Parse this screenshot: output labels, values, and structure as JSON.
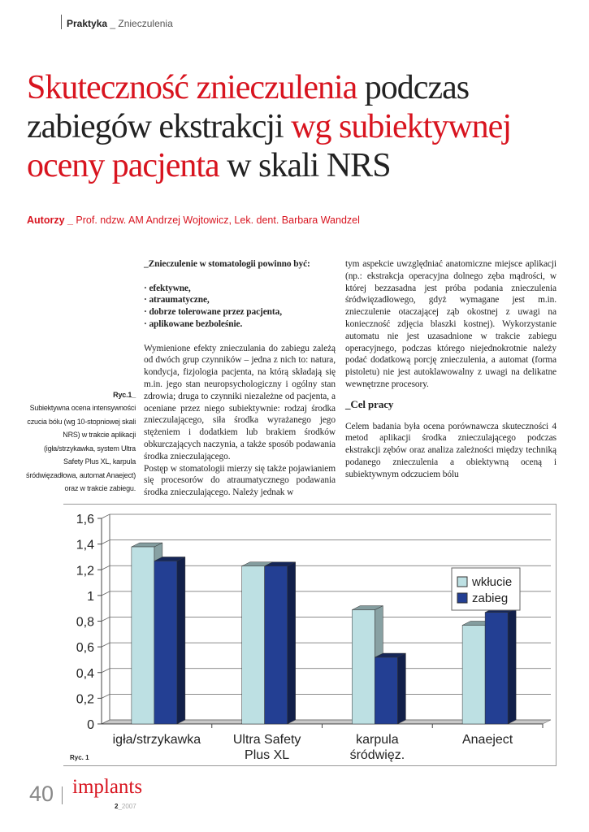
{
  "header": {
    "section": "Praktyka",
    "separator": " _ ",
    "subsection": "Znieczulenia"
  },
  "title": {
    "p1": "Skuteczność znieczulenia",
    "p2": " podczas zabiegów ekstrakcji ",
    "p3": "wg subiektywnej oceny pacjenta",
    "p4": " w skali NRS"
  },
  "authors": {
    "label": "Autorzy _",
    "names": " Prof. ndzw. AM Andrzej Wojtowicz, Lek. dent. Barbara Wandzel"
  },
  "middle": {
    "heading": "_Znieczulenie w stomatologii powinno być:",
    "bullets": [
      "· efektywne,",
      "· atraumatyczne,",
      "· dobrze tolerowane przez pacjenta,",
      "· aplikowane bezboleśnie."
    ],
    "para1": "Wymienione efekty znieczulania do zabiegu zależą od dwóch grup czynników – jedna z nich to: natura, kondycja, fizjologia pacjenta, na którą składają się m.in. jego stan neuropsychologiczny i ogólny stan zdrowia; druga to czynniki niezależne od pacjenta, a oceniane przez niego subiektywnie: rodzaj środka znieczulającego, siła środka wyrażanego jego stężeniem i dodatkiem lub brakiem środków obkurczających naczynia, a także sposób podawania środka znieczulającego.",
    "para2": "Postęp w stomatologii mierzy się także pojawianiem się procesorów do atraumatycznego podawania środka znieczulającego. Należy jednak w"
  },
  "right": {
    "para1": "tym aspekcie uwzględniać anatomiczne miejsce aplikacji (np.: ekstrakcja operacyjna dolnego zęba mądrości, w której bezzasadna jest próba podania znieczulenia śródwięzadłowego, gdyż wymagane jest m.in. znieczulenie otaczającej ząb okostnej z uwagi na konieczność zdjęcia blaszki kostnej). Wykorzystanie automatu nie jest uzasadnione w trakcie zabiegu operacyjnego, podczas którego niejednokrotnie należy podać dodatkową porcję znieczulenia, a automat (forma pistoletu) nie jest autoklawowalny z uwagi na delikatne wewnętrzne procesory.",
    "heading": "_Cel pracy",
    "para2": "Celem badania była ocena porównawcza skuteczności 4 metod aplikacji środka znieczulającego podczas ekstrakcji zębów oraz analiza zależności między techniką podanego znieczulenia a obiektywną oceną i subiektywnym odczuciem bólu"
  },
  "caption": {
    "label": "Ryc.1_",
    "text": "Subiektywna ocena intensywności czucia bólu (wg 10-stopniowej skali NRS) w trakcie aplikacji (igła/strzykawka, system Ultra Safety Plus XL, karpula śródwięzadłowa, automat Anaeject) oraz w trakcie zabiegu."
  },
  "chart_label": "Ryc. 1",
  "chart_data": {
    "type": "bar",
    "categories": [
      "igła/strzykawka",
      "Ultra Safety Plus XL",
      "karpula śródwięz.",
      "Anaeject"
    ],
    "series": [
      {
        "name": "wkłucie",
        "values": [
          1.41,
          1.26,
          0.92,
          0.8
        ],
        "color": "#bde0e3"
      },
      {
        "name": "zabieg",
        "values": [
          1.3,
          1.26,
          0.55,
          0.9
        ],
        "color": "#233f93"
      }
    ],
    "yticks": [
      "0",
      "0,2",
      "0,4",
      "0,6",
      "0,8",
      "1",
      "1,2",
      "1,4",
      "1,6"
    ],
    "ylim": [
      0,
      1.6
    ],
    "grid": true,
    "legend": "right",
    "style": "3d"
  },
  "footer": {
    "page": "40",
    "magazine": "implants",
    "issue": "2",
    "year": "_2007"
  },
  "colors": {
    "accent": "#d8141f"
  }
}
